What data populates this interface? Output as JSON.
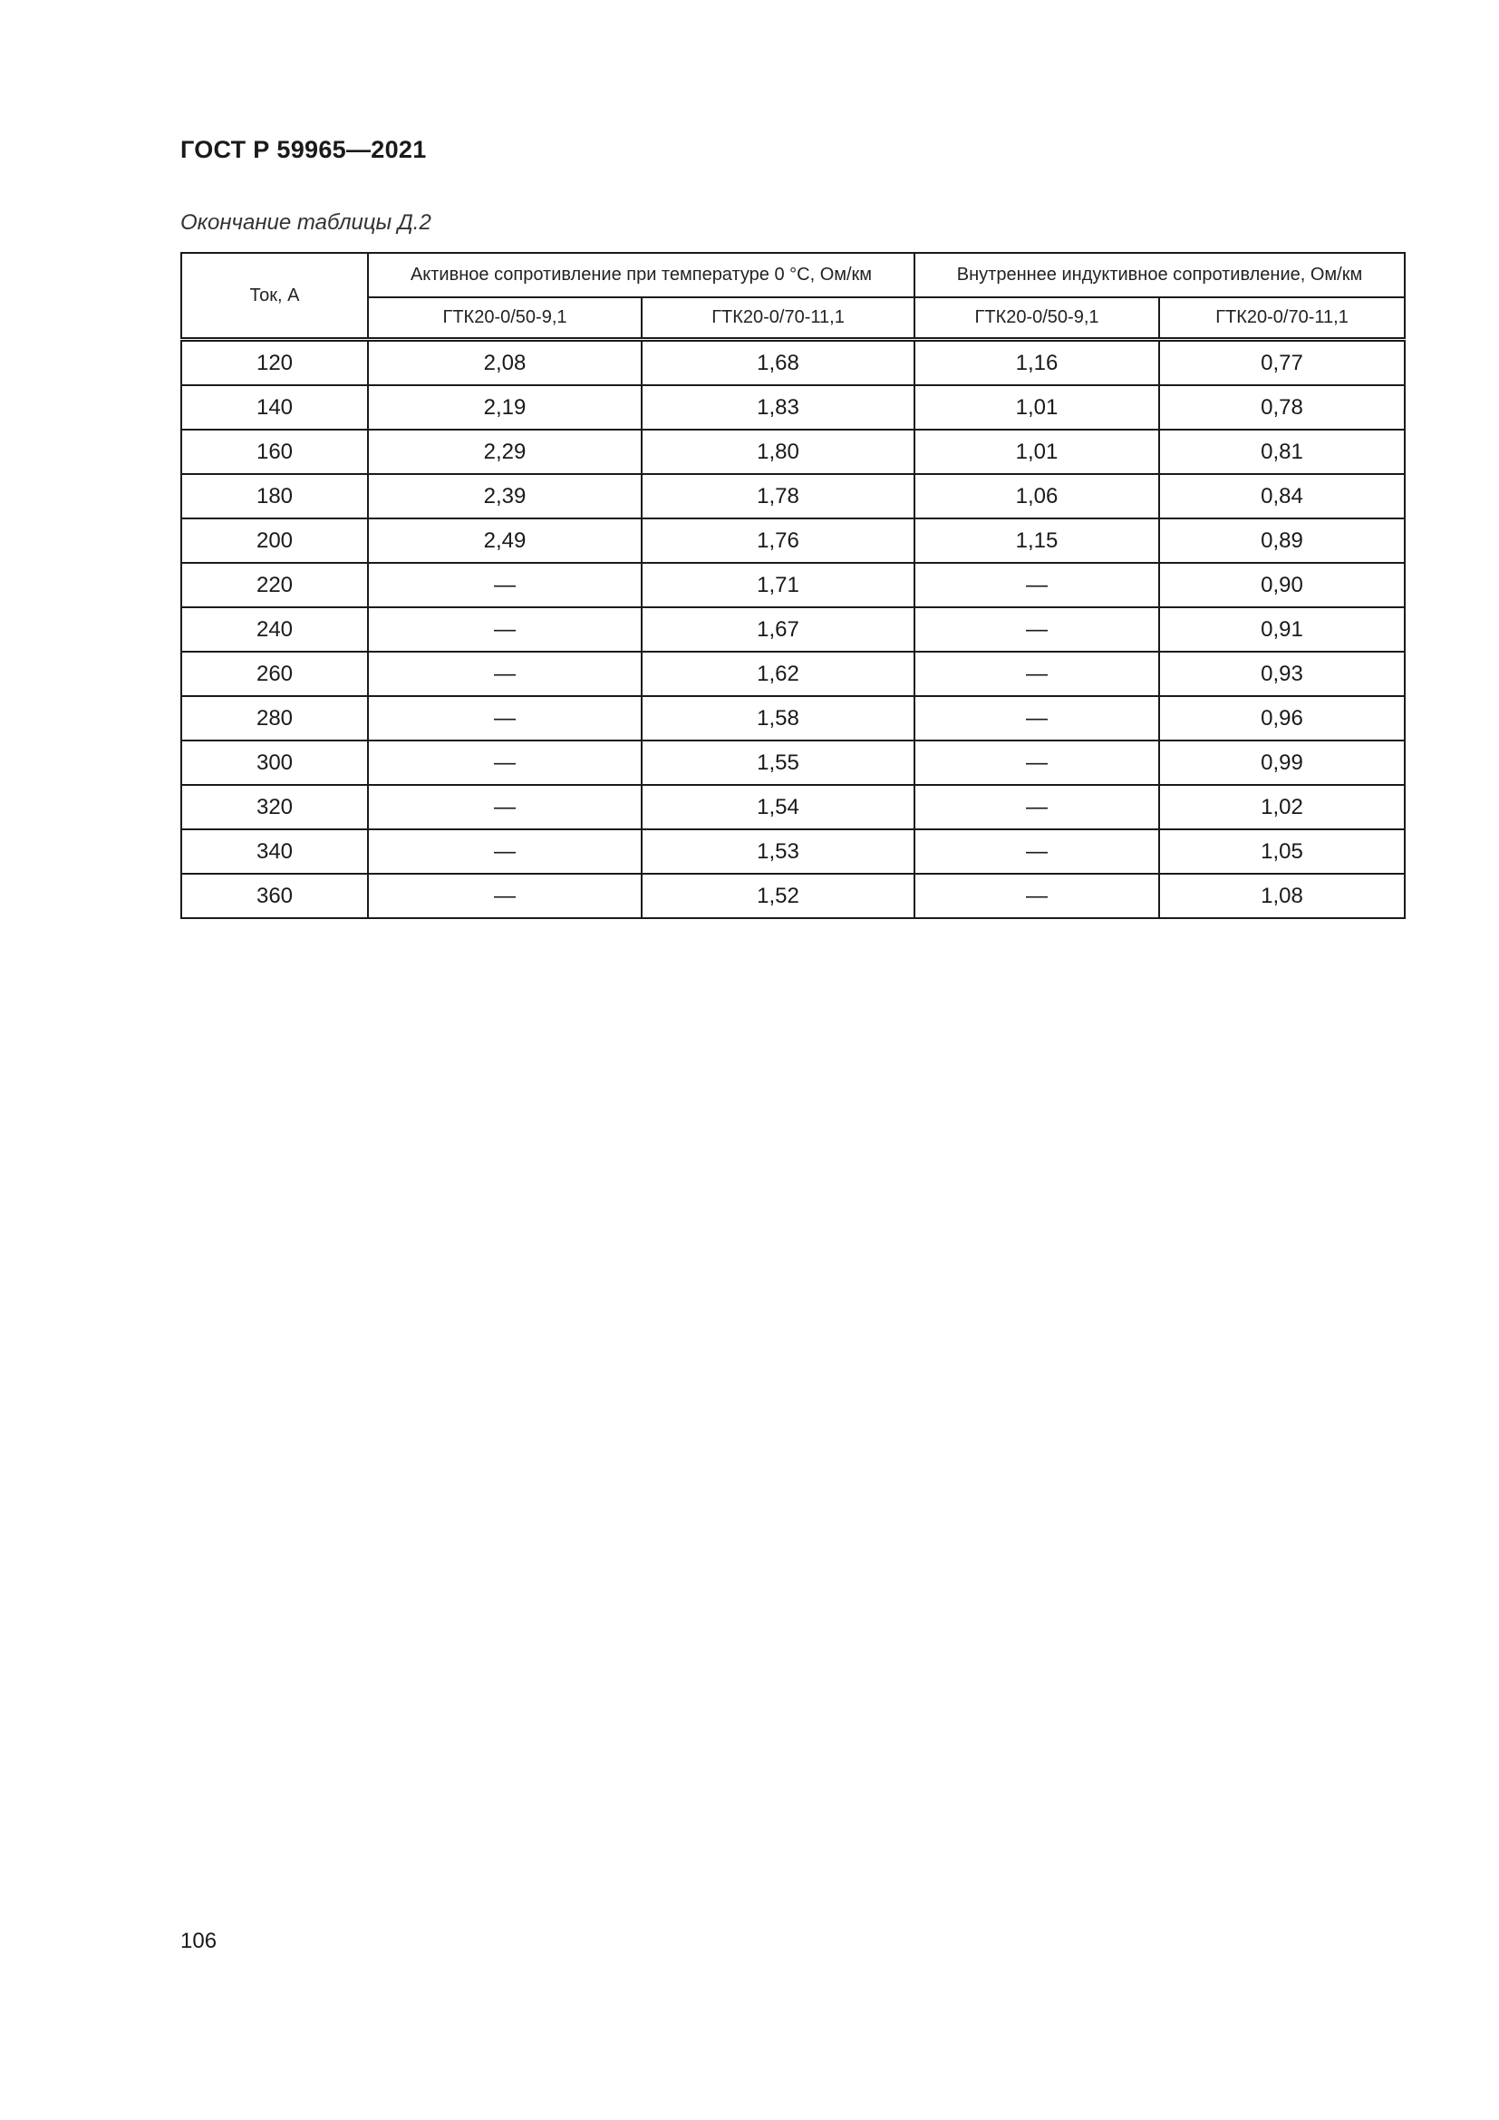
{
  "header": {
    "title": "ГОСТ Р 59965—2021"
  },
  "caption": "Окончание таблицы Д.2",
  "table": {
    "col_current": "Ток, А",
    "group_active": "Активное сопротивление при температуре 0 °С, Ом/км",
    "group_inductive": "Внутреннее индуктивное сопротивление, Ом/км",
    "subcols": [
      "ГТК20-0/50-9,1",
      "ГТК20-0/70-11,1",
      "ГТК20-0/50-9,1",
      "ГТК20-0/70-11,1"
    ],
    "rows": [
      [
        "120",
        "2,08",
        "1,68",
        "1,16",
        "0,77"
      ],
      [
        "140",
        "2,19",
        "1,83",
        "1,01",
        "0,78"
      ],
      [
        "160",
        "2,29",
        "1,80",
        "1,01",
        "0,81"
      ],
      [
        "180",
        "2,39",
        "1,78",
        "1,06",
        "0,84"
      ],
      [
        "200",
        "2,49",
        "1,76",
        "1,15",
        "0,89"
      ],
      [
        "220",
        "—",
        "1,71",
        "—",
        "0,90"
      ],
      [
        "240",
        "—",
        "1,67",
        "—",
        "0,91"
      ],
      [
        "260",
        "—",
        "1,62",
        "—",
        "0,93"
      ],
      [
        "280",
        "—",
        "1,58",
        "—",
        "0,96"
      ],
      [
        "300",
        "—",
        "1,55",
        "—",
        "0,99"
      ],
      [
        "320",
        "—",
        "1,54",
        "—",
        "1,02"
      ],
      [
        "340",
        "—",
        "1,53",
        "—",
        "1,05"
      ],
      [
        "360",
        "—",
        "1,52",
        "—",
        "1,08"
      ]
    ]
  },
  "footer": {
    "page_number": "106"
  }
}
